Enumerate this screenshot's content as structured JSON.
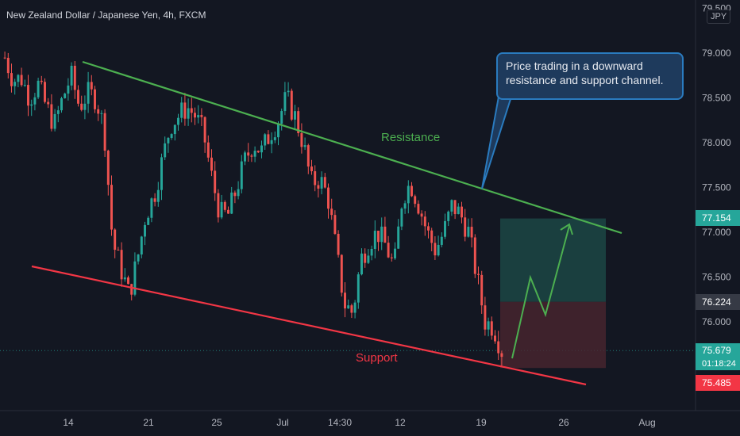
{
  "header": {
    "title": "New Zealand Dollar / Japanese Yen, 4h, FXCM",
    "currency": "JPY"
  },
  "annotations": {
    "callout": "Price trading in a downward resistance and support channel.",
    "resistance_label": "Resistance",
    "support_label": "Support"
  },
  "price_tags": {
    "target": "77.154",
    "stop": "76.224",
    "current": "75.679",
    "countdown": "01:18:24",
    "low": "75.485"
  },
  "colors": {
    "background": "#131722",
    "up_candle": "#26a69a",
    "down_candle": "#ef5350",
    "resistance_line": "#4caf50",
    "support_line": "#f23645",
    "target_zone": "#1e4d4a",
    "stop_zone": "#4a2530",
    "callout_border": "#2a7bbf",
    "projection_arrow": "#4caf50"
  },
  "chart_data": {
    "type": "candlestick",
    "title": "New Zealand Dollar / Japanese Yen, 4h, FXCM",
    "y_axis": {
      "ticks": [
        "79.500",
        "79.000",
        "78.500",
        "78.000",
        "77.500",
        "77.000",
        "76.500",
        "76.000"
      ],
      "ylim": [
        75.2,
        79.5
      ],
      "side": "right",
      "unit": "JPY"
    },
    "x_axis": {
      "ticks": [
        "14",
        "21",
        "25",
        "Jul",
        "14:30",
        "12",
        "19",
        "26",
        "Aug"
      ]
    },
    "grid": false,
    "close_path": [
      78.95,
      78.7,
      78.72,
      78.5,
      78.65,
      78.4,
      78.2,
      78.5,
      78.75,
      78.4,
      78.55,
      78.5,
      78.15,
      76.9,
      76.6,
      76.3,
      76.7,
      77.2,
      77.4,
      77.8,
      78.2,
      78.3,
      78.4,
      78.3,
      78.1,
      77.6,
      77.2,
      77.2,
      77.5,
      77.8,
      78.0,
      77.9,
      78.1,
      78.25,
      78.5,
      78.3,
      78.0,
      77.55,
      77.6,
      77.4,
      76.8,
      76.2,
      76.1,
      76.7,
      76.9,
      77.0,
      76.85,
      76.6,
      77.4,
      77.55,
      77.3,
      77.0,
      76.8,
      77.0,
      77.3,
      77.2,
      77.0,
      76.5,
      76.0,
      75.95,
      75.68
    ],
    "resistance": {
      "from": [
        "Jun 15",
        78.9
      ],
      "to": [
        "Jul 28",
        77.0
      ]
    },
    "support": {
      "from": [
        "Jun 9",
        76.6
      ],
      "to": [
        "Jul 27",
        75.5
      ]
    },
    "position": {
      "entry": 75.679,
      "target": 77.154,
      "stop": 76.224
    }
  }
}
